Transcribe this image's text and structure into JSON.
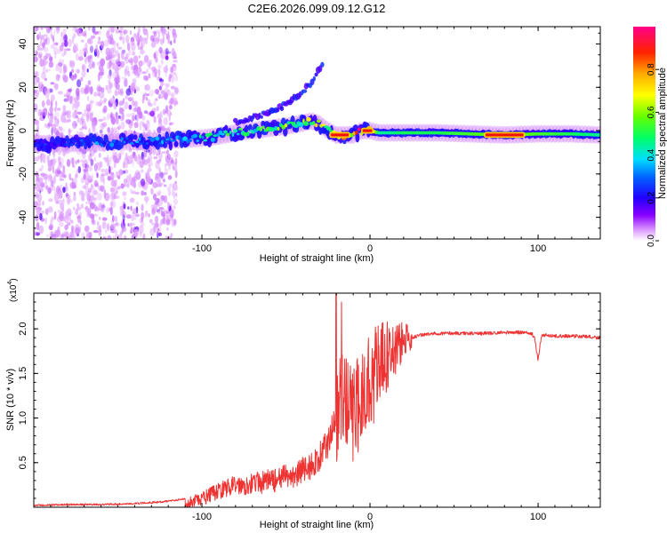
{
  "figure_title": "C2E6.2026.099.09.12.G12",
  "chart_data": [
    {
      "type": "heatmap",
      "title": "C2E6.2026.099.09.12.G12",
      "xlabel": "Height of straight line (km)",
      "ylabel": "Frequency (Hz)",
      "xlim": [
        -200,
        137
      ],
      "ylim": [
        -50,
        48
      ],
      "x_ticks": [
        -100,
        0,
        100
      ],
      "x_tick_labels": [
        "-100",
        "0",
        "100"
      ],
      "y_ticks": [
        -40,
        -20,
        0,
        20,
        40
      ],
      "y_tick_labels": [
        "-40",
        "-20",
        "0",
        "20",
        "40"
      ],
      "grid": false,
      "colorbar": {
        "label": "Normalized spectral amplitude",
        "range": [
          0,
          1
        ],
        "ticks": [
          0.0,
          0.2,
          0.4,
          0.6,
          0.8
        ],
        "tick_labels": [
          "0.0",
          "0.2",
          "0.4",
          "0.6",
          "0.8"
        ],
        "colormap": [
          "#ffffff",
          "#cc99ff",
          "#6600ff",
          "#0000ff",
          "#00ffff",
          "#00ff00",
          "#ffff00",
          "#ff8800",
          "#ff0000",
          "#ff0077"
        ]
      },
      "ridge": {
        "name": "main frequency ridge",
        "x": [
          -200,
          -180,
          -160,
          -140,
          -120,
          -100,
          -90,
          -80,
          -70,
          -60,
          -50,
          -40,
          -35,
          -30,
          -25,
          -20,
          -15,
          -10,
          -5,
          0,
          5,
          10,
          20,
          40,
          60,
          80,
          100,
          120,
          137
        ],
        "freq": [
          -6,
          -6,
          -5.5,
          -5,
          -4.5,
          -3.5,
          -2.5,
          -1,
          0,
          1,
          2,
          3.5,
          4.5,
          3,
          0,
          -2,
          -2,
          -2,
          0,
          0,
          -1,
          -1,
          -1,
          -1,
          -1.5,
          -2,
          -1.5,
          -1.5,
          -2
        ],
        "amplitude": [
          0.2,
          0.25,
          0.3,
          0.3,
          0.35,
          0.4,
          0.45,
          0.5,
          0.5,
          0.5,
          0.55,
          0.55,
          0.6,
          0.6,
          0.55,
          0.75,
          0.8,
          0.8,
          0.9,
          0.95,
          0.45,
          0.45,
          0.5,
          0.5,
          0.55,
          0.6,
          0.55,
          0.5,
          0.45
        ]
      },
      "secondary_ridge": {
        "name": "upper diverging branch",
        "x": [
          -80,
          -70,
          -60,
          -50,
          -45,
          -40,
          -35,
          -32,
          -28
        ],
        "freq": [
          4,
          6,
          8,
          12,
          15,
          18,
          22,
          26,
          30
        ]
      },
      "high_amplitude_segments": [
        {
          "x_start": -24,
          "x_end": -12,
          "freq": -2
        },
        {
          "x_start": -5,
          "x_end": 2,
          "freq": 0
        },
        {
          "x_start": 68,
          "x_end": 92,
          "freq": -2
        }
      ],
      "noise_region": {
        "x_start": -200,
        "x_end": -115
      }
    },
    {
      "type": "line",
      "xlabel": "Height of straight line (km)",
      "ylabel": "SNR (10 * v/v)",
      "y_scale_label": "(x10",
      "y_scale_exp": "4",
      "xlim": [
        -200,
        137
      ],
      "ylim": [
        0,
        2.4
      ],
      "x_ticks": [
        -100,
        0,
        100
      ],
      "x_tick_labels": [
        "-100",
        "0",
        "100"
      ],
      "y_ticks": [
        0.5,
        1.0,
        1.5,
        2.0
      ],
      "y_tick_labels": [
        "0.5",
        "1.0",
        "1.5",
        "2.0"
      ],
      "grid": false,
      "series": [
        {
          "name": "SNR",
          "color": "#ee3333",
          "x": [
            -200,
            -180,
            -160,
            -140,
            -125,
            -115,
            -110,
            -105,
            -100,
            -95,
            -90,
            -85,
            -80,
            -75,
            -70,
            -65,
            -60,
            -55,
            -50,
            -45,
            -40,
            -35,
            -30,
            -25,
            -22,
            -20,
            -17,
            -15,
            -12,
            -10,
            -7,
            -5,
            -2,
            0,
            5,
            10,
            15,
            20,
            25,
            30,
            40,
            50,
            60,
            70,
            80,
            90,
            96,
            98,
            99,
            100,
            101,
            102,
            105,
            110,
            120,
            130,
            137
          ],
          "y": [
            0.02,
            0.03,
            0.03,
            0.04,
            0.06,
            0.08,
            0.1,
            0.13,
            0.16,
            0.2,
            0.24,
            0.27,
            0.3,
            0.28,
            0.31,
            0.3,
            0.33,
            0.31,
            0.36,
            0.35,
            0.42,
            0.45,
            0.55,
            0.7,
            0.9,
            1.05,
            1.15,
            1.2,
            1.1,
            1.0,
            1.15,
            1.25,
            1.35,
            1.45,
            1.55,
            1.68,
            1.78,
            1.86,
            1.9,
            1.93,
            1.95,
            1.95,
            1.95,
            1.95,
            1.96,
            1.96,
            1.95,
            1.9,
            1.75,
            1.65,
            1.8,
            1.92,
            1.93,
            1.92,
            1.92,
            1.91,
            1.9
          ]
        }
      ]
    }
  ]
}
